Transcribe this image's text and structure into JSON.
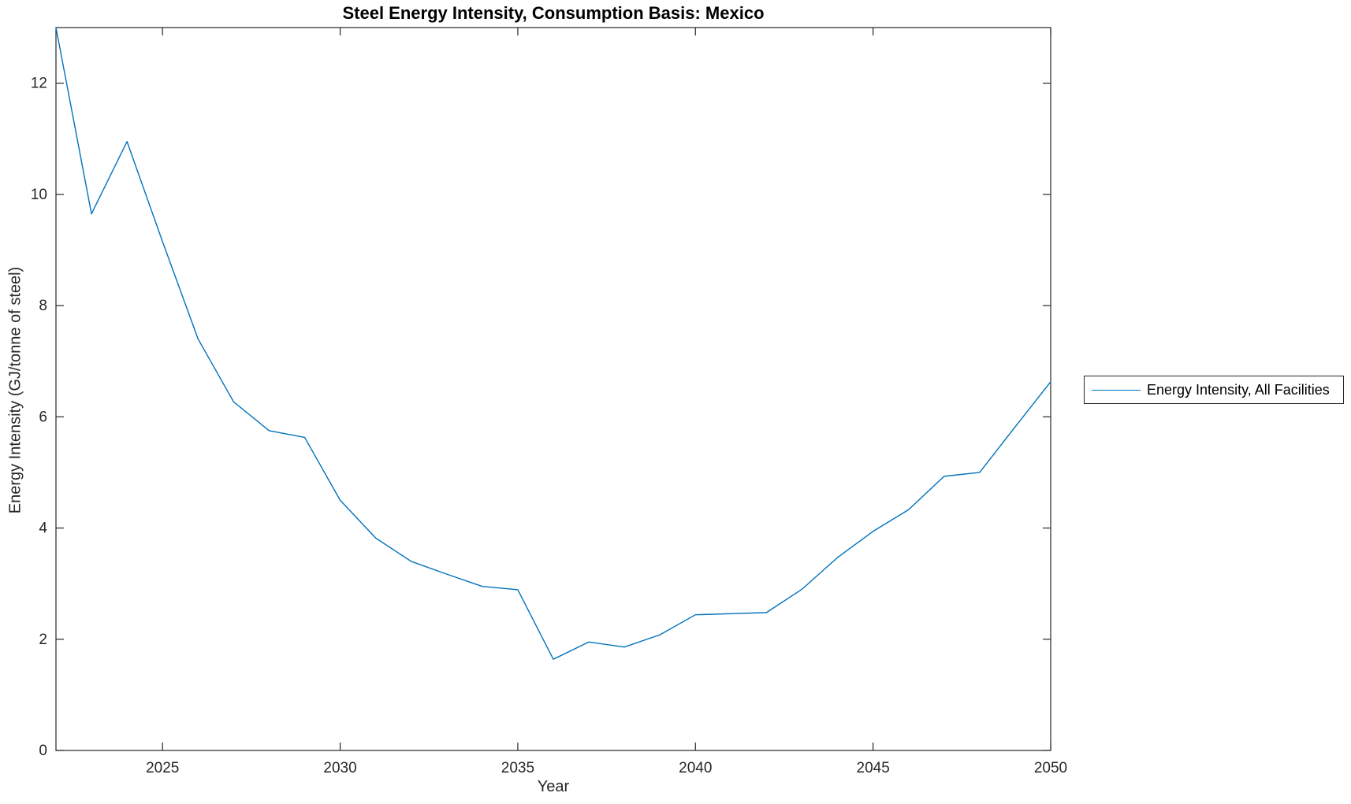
{
  "figure": {
    "title": "Steel Energy Intensity, Consumption Basis: Mexico",
    "xlabel": "Year",
    "ylabel": "Energy Intensity (GJ/tonne of steel)",
    "legend": {
      "label": "Energy Intensity, All Facilities",
      "position": "right-outside-middle"
    }
  },
  "style": {
    "line_color": "#0072BD",
    "axis_color": "#262626",
    "background": "#ffffff"
  },
  "chart_data": {
    "type": "line",
    "title": "Steel Energy Intensity, Consumption Basis: Mexico",
    "xlabel": "Year",
    "ylabel": "Energy Intensity (GJ/tonne of steel)",
    "grid": false,
    "box": true,
    "tick_dir": "in",
    "xlim": [
      2022,
      2050
    ],
    "ylim": [
      0,
      13
    ],
    "xticks": [
      2025,
      2030,
      2035,
      2040,
      2045,
      2050
    ],
    "yticks": [
      0,
      2,
      4,
      6,
      8,
      10,
      12
    ],
    "legend_position": "right-outside",
    "series": [
      {
        "name": "Energy Intensity, All Facilities",
        "color": "#0072BD",
        "x": [
          2022,
          2023,
          2024,
          2025,
          2026,
          2027,
          2028,
          2029,
          2030,
          2031,
          2032,
          2033,
          2034,
          2035,
          2036,
          2037,
          2038,
          2039,
          2040,
          2041,
          2042,
          2043,
          2044,
          2045,
          2046,
          2047,
          2048,
          2049,
          2050
        ],
        "values": [
          13.0,
          9.65,
          10.95,
          9.15,
          7.4,
          6.27,
          5.75,
          5.63,
          4.5,
          3.82,
          3.4,
          3.17,
          2.95,
          2.89,
          1.64,
          1.95,
          1.86,
          2.08,
          2.44,
          2.46,
          2.48,
          2.9,
          3.47,
          3.94,
          4.33,
          4.93,
          5.0,
          5.82,
          6.63
        ]
      }
    ]
  }
}
